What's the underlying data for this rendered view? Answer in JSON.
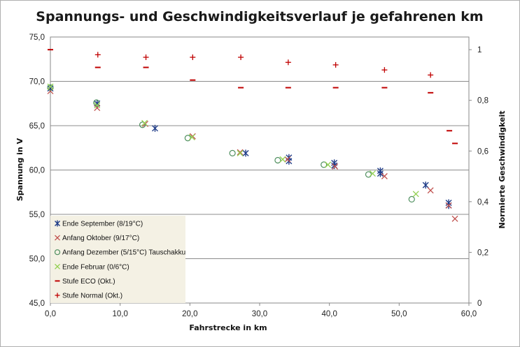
{
  "chart_data": {
    "type": "scatter",
    "title": "Spannungs-  und Geschwindigkeitsverlauf  je gefahrenen km",
    "xlabel": "Fahrstrecke in km",
    "ylabel": "Spannung in V",
    "y2label": "Normierte Geschwindigkeit",
    "xlim": [
      0,
      60
    ],
    "ylim": [
      45,
      75
    ],
    "y2lim": [
      0,
      1.05
    ],
    "xticks": [
      "0,0",
      "10,0",
      "20,0",
      "30,0",
      "40,0",
      "50,0",
      "60,0"
    ],
    "yticks": [
      "45,0",
      "50,0",
      "55,0",
      "60,0",
      "65,0",
      "70,0",
      "75,0"
    ],
    "y2ticks": [
      "0",
      "0,2",
      "0,4",
      "0,6",
      "0,8",
      "1"
    ],
    "legend_position": "bottom-left",
    "series": [
      {
        "name": "Ende September (8/19°C)",
        "axis": "left",
        "marker": "asterisk",
        "color": "#1f3c88",
        "points": [
          [
            0,
            69.2
          ],
          [
            6.7,
            67.5
          ],
          [
            15,
            64.7
          ],
          [
            28,
            61.9
          ],
          [
            34.2,
            61.4
          ],
          [
            34.2,
            61.0
          ],
          [
            40.7,
            60.8
          ],
          [
            40.7,
            60.5
          ],
          [
            47.3,
            59.9
          ],
          [
            47.3,
            59.6
          ],
          [
            53.8,
            58.3
          ],
          [
            57.1,
            56.3
          ],
          [
            57.1,
            56.0
          ]
        ]
      },
      {
        "name": "Anfang Oktober (9/17°C)",
        "axis": "left",
        "marker": "x",
        "color": "#c0504d",
        "points": [
          [
            0,
            68.9
          ],
          [
            6.7,
            67.0
          ],
          [
            13.6,
            65.2
          ],
          [
            20.4,
            63.8
          ],
          [
            27.2,
            62.0
          ],
          [
            34,
            61.2
          ],
          [
            40.8,
            60.4
          ],
          [
            47.9,
            59.3
          ],
          [
            54.5,
            57.7
          ],
          [
            57.1,
            56.0
          ],
          [
            58,
            54.5
          ]
        ]
      },
      {
        "name": "Anfang Dezember (5/15°C) Tauschakku",
        "axis": "left",
        "marker": "circle",
        "color": "#4f8f5f",
        "points": [
          [
            0,
            69.3
          ],
          [
            6.6,
            67.6
          ],
          [
            13.2,
            65.1
          ],
          [
            19.7,
            63.6
          ],
          [
            26.1,
            61.9
          ],
          [
            32.6,
            61.1
          ],
          [
            39.2,
            60.6
          ],
          [
            45.6,
            59.5
          ],
          [
            51.8,
            56.7
          ]
        ]
      },
      {
        "name": "Ende Februar (0/6°C)",
        "axis": "left",
        "marker": "x",
        "color": "#92d050",
        "points": [
          [
            0,
            69.4
          ],
          [
            6.7,
            67.3
          ],
          [
            13.5,
            65.3
          ],
          [
            20.3,
            63.7
          ],
          [
            27.2,
            61.9
          ],
          [
            33.3,
            61.2
          ],
          [
            39.8,
            60.6
          ],
          [
            46.2,
            59.6
          ],
          [
            52.4,
            57.3
          ]
        ]
      },
      {
        "name": "Stufe ECO (Okt.)",
        "axis": "right",
        "marker": "dash",
        "color": "#c00000",
        "points": [
          [
            0,
            1.0
          ],
          [
            6.8,
            0.93
          ],
          [
            13.7,
            0.93
          ],
          [
            20.4,
            0.88
          ],
          [
            27.3,
            0.85
          ],
          [
            34.1,
            0.85
          ],
          [
            40.9,
            0.85
          ],
          [
            47.9,
            0.85
          ],
          [
            54.5,
            0.83
          ],
          [
            57.2,
            0.68
          ],
          [
            58,
            0.63
          ]
        ]
      },
      {
        "name": "Stufe Normal (Okt.)",
        "axis": "right",
        "marker": "plus",
        "color": "#c00000",
        "points": [
          [
            6.8,
            0.98
          ],
          [
            13.7,
            0.97
          ],
          [
            20.4,
            0.97
          ],
          [
            27.3,
            0.97
          ],
          [
            34.1,
            0.95
          ],
          [
            40.9,
            0.94
          ],
          [
            47.9,
            0.92
          ],
          [
            54.5,
            0.9
          ]
        ]
      }
    ]
  }
}
